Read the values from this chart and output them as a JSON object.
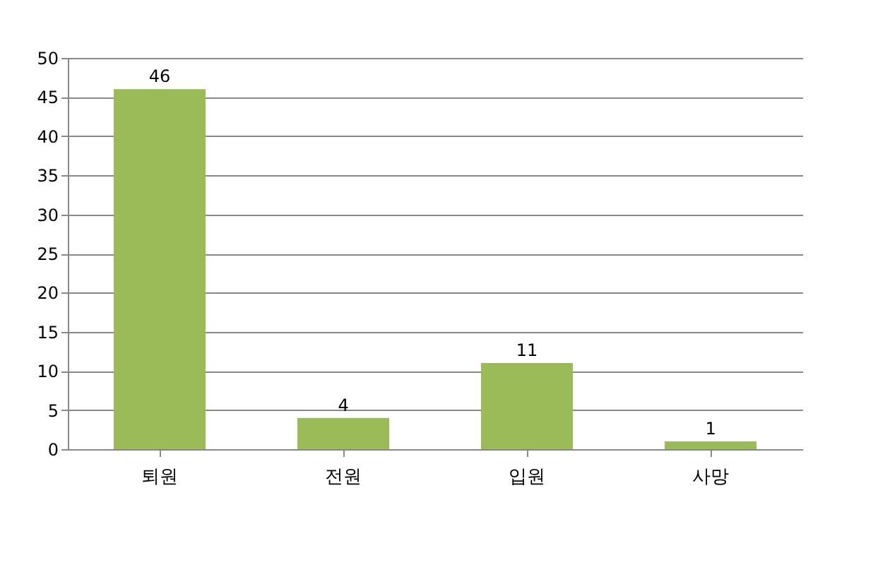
{
  "chart_data": {
    "type": "bar",
    "categories": [
      "퇴원",
      "전원",
      "입원",
      "사망"
    ],
    "values": [
      46,
      4,
      11,
      1
    ],
    "color": "#9bbb59",
    "ylim": [
      0,
      50
    ],
    "yticks": [
      0,
      5,
      10,
      15,
      20,
      25,
      30,
      35,
      40,
      45,
      50
    ],
    "grid": "y",
    "data_labels": true
  }
}
